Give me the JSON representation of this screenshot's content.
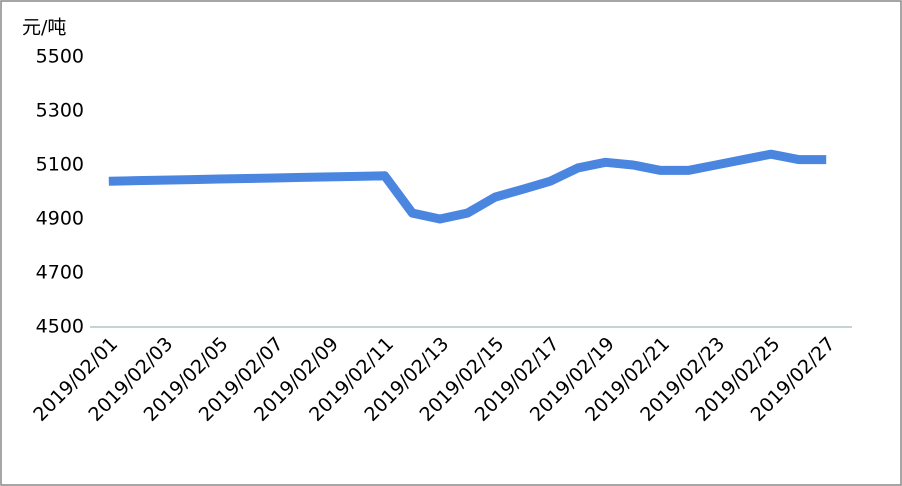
{
  "chart_data": {
    "type": "line",
    "y_unit": "元/吨",
    "categories": [
      "2019/02/01",
      null,
      "2019/02/03",
      null,
      "2019/02/05",
      null,
      "2019/02/07",
      null,
      "2019/02/09",
      null,
      "2019/02/11",
      null,
      "2019/02/13",
      null,
      "2019/02/15",
      null,
      "2019/02/17",
      null,
      "2019/02/19",
      null,
      "2019/02/21",
      null,
      "2019/02/23",
      null,
      "2019/02/25",
      null,
      "2019/02/27"
    ],
    "series": [
      {
        "color": "#4a86e0",
        "values": [
          5040,
          5042,
          5044,
          5046,
          5048,
          5050,
          5052,
          5054,
          5056,
          5058,
          5060,
          4922,
          4900,
          4922,
          4981,
          5010,
          5040,
          5089,
          5110,
          5100,
          5080,
          5080,
          5100,
          5120,
          5140,
          5120,
          5120
        ]
      }
    ],
    "ylim": [
      4500,
      5500
    ],
    "yticks": [
      4500,
      4700,
      4900,
      5100,
      5300,
      5500
    ],
    "grid": false
  }
}
